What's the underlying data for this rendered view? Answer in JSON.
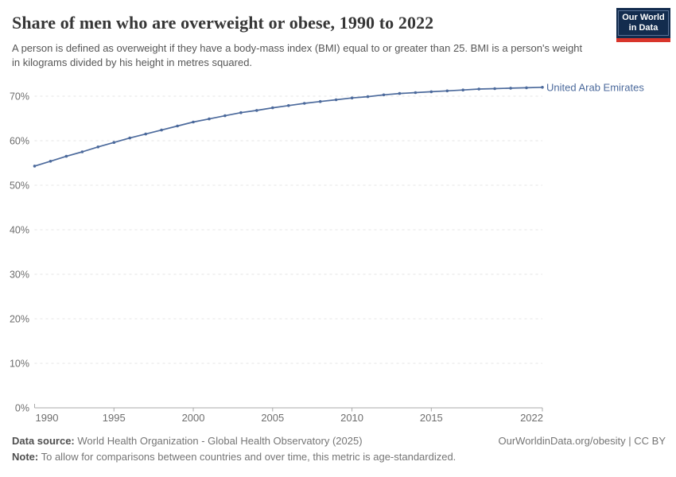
{
  "header": {
    "title": "Share of men who are overweight or obese, 1990 to 2022",
    "subtitle": "A person is defined as overweight if they have a body-mass index (BMI) equal to or greater than 25. BMI is a person's weight in kilograms divided by his height in metres squared.",
    "logo": {
      "line1": "Our World",
      "line2": "in Data"
    }
  },
  "chart_data": {
    "type": "line",
    "title": "Share of men who are overweight or obese, 1990 to 2022",
    "xlabel": "",
    "ylabel": "",
    "unit": "%",
    "grid": "horizontal-dashed",
    "legend": "inline-end-label",
    "xlim": [
      1990,
      2022
    ],
    "ylim": [
      0,
      75
    ],
    "x": [
      1990,
      1991,
      1992,
      1993,
      1994,
      1995,
      1996,
      1997,
      1998,
      1999,
      2000,
      2001,
      2002,
      2003,
      2004,
      2005,
      2006,
      2007,
      2008,
      2009,
      2010,
      2011,
      2012,
      2013,
      2014,
      2015,
      2016,
      2017,
      2018,
      2019,
      2020,
      2021,
      2022
    ],
    "series": [
      {
        "name": "United Arab Emirates",
        "color": "#4C6A9C",
        "values": [
          54.3,
          55.4,
          56.5,
          57.5,
          58.6,
          59.6,
          60.6,
          61.5,
          62.4,
          63.3,
          64.2,
          64.9,
          65.6,
          66.3,
          66.8,
          67.4,
          67.9,
          68.4,
          68.8,
          69.2,
          69.6,
          69.9,
          70.3,
          70.6,
          70.8,
          71.0,
          71.2,
          71.4,
          71.6,
          71.7,
          71.8,
          71.9,
          72.0
        ]
      }
    ],
    "x_ticks": [
      1990,
      1995,
      2000,
      2005,
      2010,
      2015,
      2022
    ],
    "y_ticks": [
      "0%",
      "10%",
      "20%",
      "30%",
      "40%",
      "50%",
      "60%",
      "70%"
    ]
  },
  "footer": {
    "datasource_label": "Data source:",
    "datasource": "World Health Organization - Global Health Observatory (2025)",
    "note_label": "Note:",
    "note": "To allow for comparisons between countries and over time, this metric is age-standardized.",
    "credit": "OurWorldinData.org/obesity | CC BY"
  },
  "colors": {
    "accent_line": "#4C6A9C",
    "logo_background": "#132c4e",
    "logo_red_bar": "#d8352b",
    "gridline": "#e4e4e4",
    "axis": "#a9a9a9"
  }
}
